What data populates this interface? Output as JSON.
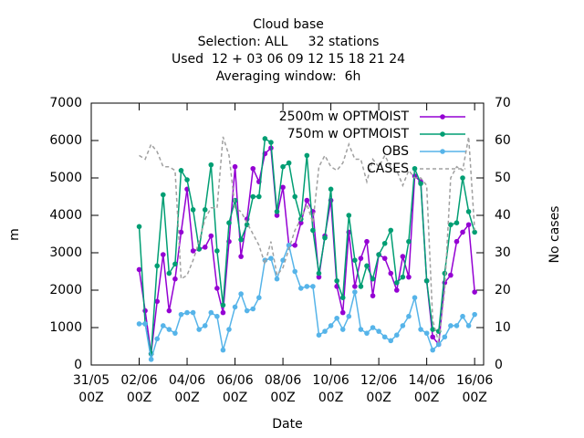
{
  "chart_data": {
    "type": "line",
    "title": [
      "Cloud base",
      "Selection: ALL     32 stations",
      "Used  12 + 03 06 09 12 15 18 21 24",
      "Averaging window:  6h"
    ],
    "xlabel": "Date",
    "ylabel": "m",
    "y2label": "No cases",
    "x": [
      "02/06 00Z",
      "02/06 06Z",
      "02/06 12Z",
      "02/06 18Z",
      "03/06 00Z",
      "03/06 06Z",
      "03/06 12Z",
      "03/06 18Z",
      "04/06 00Z",
      "04/06 06Z",
      "04/06 12Z",
      "04/06 18Z",
      "05/06 00Z",
      "05/06 06Z",
      "05/06 12Z",
      "05/06 18Z",
      "06/06 00Z",
      "06/06 06Z",
      "06/06 12Z",
      "06/06 18Z",
      "07/06 00Z",
      "07/06 06Z",
      "07/06 12Z",
      "07/06 18Z",
      "08/06 00Z",
      "08/06 06Z",
      "08/06 12Z",
      "08/06 18Z",
      "09/06 00Z",
      "09/06 06Z",
      "09/06 12Z",
      "09/06 18Z",
      "10/06 00Z",
      "10/06 06Z",
      "10/06 12Z",
      "10/06 18Z",
      "11/06 00Z",
      "11/06 06Z",
      "11/06 12Z",
      "11/06 18Z",
      "12/06 00Z",
      "12/06 06Z",
      "12/06 12Z",
      "12/06 18Z",
      "13/06 00Z",
      "13/06 06Z",
      "13/06 12Z",
      "13/06 18Z",
      "14/06 00Z",
      "14/06 06Z",
      "14/06 12Z",
      "14/06 18Z",
      "15/06 00Z",
      "15/06 06Z",
      "15/06 12Z",
      "15/06 18Z",
      "16/06 00Z"
    ],
    "series": [
      {
        "name": "2500m w OPTMOIST",
        "color": "#9400d3",
        "marker": true,
        "dashed": false,
        "values": [
          2550,
          1450,
          300,
          1700,
          2950,
          1450,
          2300,
          3550,
          4700,
          3050,
          3100,
          3150,
          3450,
          2050,
          1400,
          3300,
          5300,
          2900,
          3900,
          5250,
          4900,
          5650,
          5800,
          4000,
          4750,
          3200,
          3200,
          3800,
          4400,
          4100,
          2350,
          3450,
          4400,
          2100,
          1400,
          3550,
          2100,
          2850,
          3300,
          1850,
          2950,
          2850,
          2450,
          2000,
          2900,
          2350,
          5050,
          4900,
          2250,
          750,
          550,
          2200,
          2400,
          3300,
          3550,
          3750,
          1950
        ]
      },
      {
        "name": "750m w OPTMOIST",
        "color": "#009e73",
        "marker": true,
        "dashed": false,
        "values": [
          3700,
          1100,
          300,
          2650,
          4550,
          2450,
          2700,
          5200,
          4950,
          4150,
          3100,
          4150,
          5350,
          3050,
          1600,
          3800,
          4400,
          3350,
          3750,
          4500,
          4500,
          6050,
          5950,
          4100,
          5300,
          5400,
          4500,
          3900,
          5600,
          3600,
          2450,
          3400,
          4700,
          2250,
          1800,
          4000,
          2800,
          2100,
          2650,
          2300,
          2950,
          3250,
          3600,
          2200,
          2350,
          3300,
          5250,
          4850,
          2250,
          950,
          900,
          2450,
          3750,
          3800,
          5000,
          4100,
          3550
        ]
      },
      {
        "name": "OBS",
        "color": "#56b4e9",
        "marker": true,
        "dashed": false,
        "values": [
          1100,
          1100,
          150,
          700,
          1050,
          950,
          850,
          1350,
          1400,
          1400,
          950,
          1050,
          1400,
          1300,
          400,
          950,
          1550,
          1900,
          1450,
          1500,
          1800,
          2800,
          2850,
          2300,
          2800,
          3200,
          2500,
          2050,
          2100,
          2100,
          800,
          900,
          1050,
          1250,
          950,
          1300,
          1950,
          950,
          850,
          1000,
          900,
          750,
          650,
          800,
          1050,
          1300,
          1800,
          950,
          850,
          400,
          550,
          750,
          1050,
          1050,
          1300,
          1050,
          1350
        ]
      },
      {
        "name": "CASES",
        "color": "#a0a0a0",
        "marker": false,
        "dashed": true,
        "axis": "y2",
        "values": [
          56,
          55,
          59,
          57,
          53,
          53,
          52,
          23,
          24,
          28,
          33,
          39,
          42,
          42,
          61,
          56,
          42,
          41,
          38,
          35,
          32,
          27,
          33,
          24,
          26,
          31,
          36,
          39,
          43,
          38,
          53,
          56,
          53,
          52,
          54,
          59,
          55,
          55,
          49,
          55,
          53,
          56,
          53,
          52,
          48,
          52,
          50,
          50,
          48,
          12,
          6,
          20,
          50,
          53,
          52,
          61,
          36
        ]
      }
    ],
    "xlim": [
      "31/05 00Z",
      "16/06 09Z"
    ],
    "xticks": [
      {
        "value": "31/05 00Z",
        "label": "31/05\n00Z"
      },
      {
        "value": "02/06 00Z",
        "label": "02/06\n00Z"
      },
      {
        "value": "04/06 00Z",
        "label": "04/06\n00Z"
      },
      {
        "value": "06/06 00Z",
        "label": "06/06\n00Z"
      },
      {
        "value": "08/06 00Z",
        "label": "08/06\n00Z"
      },
      {
        "value": "10/06 00Z",
        "label": "10/06\n00Z"
      },
      {
        "value": "12/06 00Z",
        "label": "12/06\n00Z"
      },
      {
        "value": "14/06 00Z",
        "label": "14/06\n00Z"
      },
      {
        "value": "16/06 00Z",
        "label": "16/06\n00Z"
      }
    ],
    "ylim": [
      0,
      7000
    ],
    "yticks": [
      0,
      1000,
      2000,
      3000,
      4000,
      5000,
      6000,
      7000
    ],
    "y2lim": [
      0,
      70
    ],
    "y2ticks": [
      0,
      10,
      20,
      30,
      40,
      50,
      60,
      70
    ],
    "legend": "upper right"
  }
}
